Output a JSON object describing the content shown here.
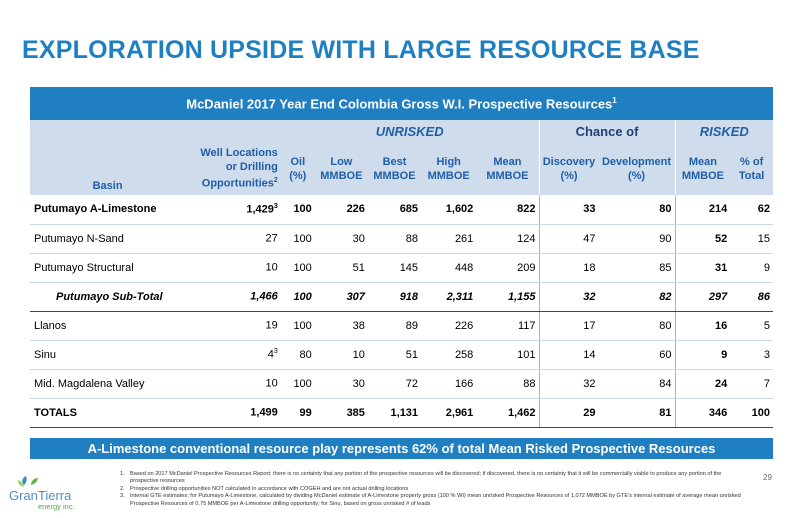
{
  "title": "EXPLORATION UPSIDE WITH LARGE RESOURCE BASE",
  "table": {
    "header_title": "McDaniel 2017 Year End Colombia Gross W.I. Prospective Resources",
    "header_title_sup": "1",
    "group_unrisked": "UNRISKED",
    "group_chance": "Chance of",
    "group_risked": "RISKED",
    "col_basin": "Basin",
    "col_wells_l1": "Well Locations",
    "col_wells_l2": "or Drilling",
    "col_wells_l3": "Opportunities",
    "col_wells_sup": "2",
    "col_oil_l1": "Oil",
    "col_oil_l2": "(%)",
    "col_low_l1": "Low",
    "col_low_l2": "MMBOE",
    "col_best_l1": "Best",
    "col_best_l2": "MMBOE",
    "col_high_l1": "High",
    "col_high_l2": "MMBOE",
    "col_mean_l1": "Mean",
    "col_mean_l2": "MMBOE",
    "col_disc_l1": "Discovery",
    "col_disc_l2": "(%)",
    "col_dev_l1": "Development",
    "col_dev_l2": "(%)",
    "col_rmean_l1": "Mean",
    "col_rmean_l2": "MMBOE",
    "col_pct_l1": "% of",
    "col_pct_l2": "Total",
    "rows": [
      {
        "basin": "Putumayo A-Limestone",
        "wells": "1,429",
        "wells_sup": "3",
        "oil": "100",
        "low": "226",
        "best": "685",
        "high": "1,602",
        "mean": "822",
        "disc": "33",
        "dev": "80",
        "rmean": "214",
        "pct": "62"
      },
      {
        "basin": "Putumayo N-Sand",
        "wells": "27",
        "wells_sup": "",
        "oil": "100",
        "low": "30",
        "best": "88",
        "high": "261",
        "mean": "124",
        "disc": "47",
        "dev": "90",
        "rmean": "52",
        "pct": "15"
      },
      {
        "basin": "Putumayo Structural",
        "wells": "10",
        "wells_sup": "",
        "oil": "100",
        "low": "51",
        "best": "145",
        "high": "448",
        "mean": "209",
        "disc": "18",
        "dev": "85",
        "rmean": "31",
        "pct": "9"
      },
      {
        "basin": "Putumayo Sub-Total",
        "wells": "1,466",
        "wells_sup": "",
        "oil": "100",
        "low": "307",
        "best": "918",
        "high": "2,311",
        "mean": "1,155",
        "disc": "32",
        "dev": "82",
        "rmean": "297",
        "pct": "86"
      },
      {
        "basin": "Llanos",
        "wells": "19",
        "wells_sup": "",
        "oil": "100",
        "low": "38",
        "best": "89",
        "high": "226",
        "mean": "117",
        "disc": "17",
        "dev": "80",
        "rmean": "16",
        "pct": "5"
      },
      {
        "basin": "Sinu",
        "wells": "4",
        "wells_sup": "3",
        "oil": "80",
        "low": "10",
        "best": "51",
        "high": "258",
        "mean": "101",
        "disc": "14",
        "dev": "60",
        "rmean": "9",
        "pct": "3"
      },
      {
        "basin": "Mid. Magdalena Valley",
        "wells": "10",
        "wells_sup": "",
        "oil": "100",
        "low": "30",
        "best": "72",
        "high": "166",
        "mean": "88",
        "disc": "32",
        "dev": "84",
        "rmean": "24",
        "pct": "7"
      },
      {
        "basin": "TOTALS",
        "wells": "1,499",
        "wells_sup": "",
        "oil": "99",
        "low": "385",
        "best": "1,131",
        "high": "2,961",
        "mean": "1,462",
        "disc": "29",
        "dev": "81",
        "rmean": "346",
        "pct": "100"
      }
    ]
  },
  "banner": "A-Limestone conventional resource play represents 62% of total Mean Risked Prospective Resources",
  "footnotes": [
    {
      "num": "1.",
      "text": "Based on 2017 McDaniel Prospective Resources Report; there is no certainty that any portion of the prospective resources will be discovered; if discovered, there is no certainty that it will be commercially viable to produce any portion of the prospective resources"
    },
    {
      "num": "2.",
      "text": "Prospective drilling opportunities NOT calculated in accordance with COGEH and are not actual drilling locations"
    },
    {
      "num": "3.",
      "text": "Internal GTE estimates; for Putumayo A-Limestone, calculated by dividing McDaniel estimate of A-Limestone property gross (100 % WI) mean unrisked Prospective Resources of 1,072 MMBOE by GTE's internal estimate of average mean unrisked Prospective Resources of 0.75 MMBOE per A-Limestone drilling opportunity; for Sinu, based on gross unrisked # of leads"
    }
  ],
  "logo": {
    "line1": "GranTierra",
    "line2": "energy inc."
  },
  "page_number": "29",
  "colors": {
    "accent": "#1f7fc1",
    "header_bg": "#cfdcec",
    "header_text": "#1f5fa8"
  }
}
